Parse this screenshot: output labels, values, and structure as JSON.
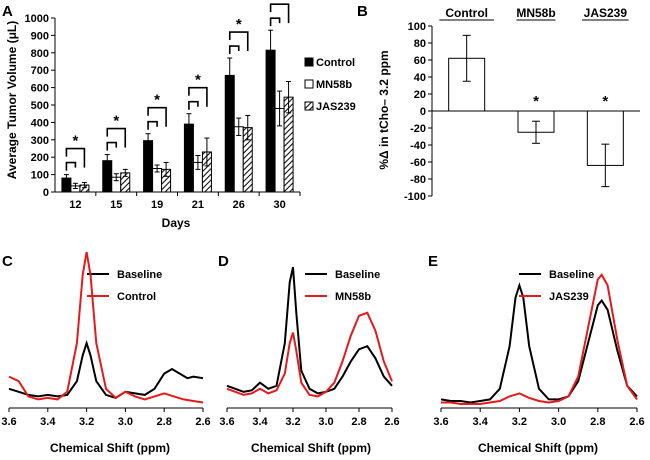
{
  "panels": {
    "A": "A",
    "B": "B",
    "C": "C",
    "D": "D",
    "E": "E"
  },
  "chart_data": [
    {
      "id": "A",
      "type": "bar",
      "title": "",
      "xlabel": "Days",
      "ylabel": "Average Tumor Volume (μL)",
      "ylim": [
        0,
        1000
      ],
      "yticks": [
        0,
        100,
        200,
        300,
        400,
        500,
        600,
        700,
        800,
        900,
        1000
      ],
      "categories": [
        "12",
        "15",
        "19",
        "21",
        "26",
        "30"
      ],
      "legend_position": "right",
      "series": [
        {
          "name": "Control",
          "values": [
            80,
            180,
            295,
            390,
            670,
            815
          ],
          "errors": [
            20,
            35,
            40,
            60,
            100,
            115
          ],
          "color": "#000000"
        },
        {
          "name": "MN58b",
          "values": [
            35,
            85,
            135,
            170,
            375,
            480
          ],
          "errors": [
            15,
            20,
            20,
            40,
            50,
            100
          ],
          "color": "#ffffff"
        },
        {
          "name": "JAS239",
          "values": [
            40,
            110,
            130,
            230,
            370,
            545
          ],
          "errors": [
            15,
            20,
            40,
            80,
            70,
            90
          ],
          "color": "hatched"
        }
      ],
      "significance": [
        {
          "label": "*"
        },
        {
          "label": "*"
        },
        {
          "label": "*"
        },
        {
          "label": "*"
        },
        {
          "label": "*"
        },
        {
          "label": "*"
        }
      ]
    },
    {
      "id": "B",
      "type": "bar",
      "title": "",
      "xlabel": "",
      "ylabel": "%Δ in tCho– 3.2 ppm",
      "ylim": [
        -100,
        100
      ],
      "yticks": [
        -100,
        -80,
        -60,
        -40,
        -20,
        0,
        20,
        40,
        60,
        80,
        100
      ],
      "categories": [
        "Control",
        "MN58b",
        "JAS239"
      ],
      "category_position": "top",
      "values": [
        62,
        -25,
        -64
      ],
      "errors": [
        27,
        13,
        25
      ],
      "significance": [
        "",
        "*",
        "*"
      ]
    },
    {
      "id": "C",
      "type": "line",
      "xlabel": "Chemical Shift (ppm)",
      "ylabel": "",
      "x_reversed": true,
      "xlim": [
        3.6,
        2.6
      ],
      "xticks": [
        "3.6",
        "3.4",
        "3.2",
        "3.0",
        "2.8",
        "2.6"
      ],
      "legend_position": "top-right",
      "series": [
        {
          "name": "Baseline",
          "color": "#000000",
          "x": [
            3.6,
            3.55,
            3.5,
            3.45,
            3.4,
            3.35,
            3.3,
            3.25,
            3.22,
            3.2,
            3.18,
            3.15,
            3.1,
            3.05,
            3.0,
            2.95,
            2.9,
            2.85,
            2.8,
            2.76,
            2.72,
            2.68,
            2.65,
            2.6
          ],
          "y": [
            0.1,
            0.08,
            0.06,
            0.05,
            0.06,
            0.05,
            0.06,
            0.15,
            0.32,
            0.4,
            0.32,
            0.15,
            0.06,
            0.04,
            0.08,
            0.07,
            0.06,
            0.1,
            0.2,
            0.23,
            0.2,
            0.17,
            0.18,
            0.17
          ]
        },
        {
          "name": "Control",
          "color": "#e41a1c",
          "x": [
            3.6,
            3.55,
            3.5,
            3.45,
            3.4,
            3.35,
            3.3,
            3.25,
            3.22,
            3.2,
            3.18,
            3.15,
            3.1,
            3.05,
            3.0,
            2.95,
            2.9,
            2.85,
            2.8,
            2.75,
            2.7,
            2.65,
            2.6
          ],
          "y": [
            0.18,
            0.15,
            0.05,
            0.03,
            0.04,
            0.03,
            0.08,
            0.4,
            0.85,
            1.0,
            0.85,
            0.4,
            0.1,
            0.04,
            0.08,
            0.05,
            0.03,
            0.05,
            0.07,
            0.05,
            0.03,
            0.02,
            0.01
          ]
        }
      ]
    },
    {
      "id": "D",
      "type": "line",
      "xlabel": "Chemical Shift (ppm)",
      "ylabel": "",
      "x_reversed": true,
      "xlim": [
        3.6,
        2.6
      ],
      "xticks": [
        "3.6",
        "3.4",
        "3.2",
        "3.0",
        "2.8",
        "2.6"
      ],
      "legend_position": "top-right",
      "series": [
        {
          "name": "Baseline",
          "color": "#000000",
          "x": [
            3.6,
            3.55,
            3.5,
            3.45,
            3.4,
            3.35,
            3.3,
            3.25,
            3.22,
            3.2,
            3.18,
            3.15,
            3.1,
            3.05,
            3.0,
            2.95,
            2.9,
            2.85,
            2.8,
            2.75,
            2.7,
            2.65,
            2.6
          ],
          "y": [
            0.12,
            0.1,
            0.08,
            0.09,
            0.14,
            0.1,
            0.12,
            0.4,
            0.8,
            0.9,
            0.6,
            0.22,
            0.1,
            0.07,
            0.08,
            0.1,
            0.18,
            0.28,
            0.36,
            0.38,
            0.3,
            0.18,
            0.12
          ]
        },
        {
          "name": "MN58b",
          "color": "#e41a1c",
          "x": [
            3.6,
            3.55,
            3.5,
            3.45,
            3.4,
            3.35,
            3.3,
            3.25,
            3.22,
            3.2,
            3.18,
            3.15,
            3.1,
            3.05,
            3.0,
            2.95,
            2.9,
            2.85,
            2.8,
            2.75,
            2.7,
            2.65,
            2.6
          ],
          "y": [
            0.1,
            0.08,
            0.06,
            0.07,
            0.1,
            0.07,
            0.09,
            0.2,
            0.4,
            0.47,
            0.35,
            0.14,
            0.06,
            0.05,
            0.08,
            0.14,
            0.28,
            0.45,
            0.58,
            0.6,
            0.48,
            0.28,
            0.15
          ]
        }
      ]
    },
    {
      "id": "E",
      "type": "line",
      "xlabel": "Chemical Shift (ppm)",
      "ylabel": "",
      "x_reversed": true,
      "xlim": [
        3.6,
        2.6
      ],
      "xticks": [
        "3.6",
        "3.4",
        "3.2",
        "3.0",
        "2.8",
        "2.6"
      ],
      "legend_position": "top-right",
      "series": [
        {
          "name": "Baseline",
          "color": "#000000",
          "x": [
            3.6,
            3.55,
            3.5,
            3.45,
            3.4,
            3.35,
            3.3,
            3.25,
            3.22,
            3.2,
            3.18,
            3.15,
            3.1,
            3.05,
            3.0,
            2.95,
            2.9,
            2.85,
            2.8,
            2.78,
            2.75,
            2.7,
            2.65,
            2.6
          ],
          "y": [
            0.03,
            0.02,
            0.02,
            0.01,
            0.02,
            0.03,
            0.1,
            0.38,
            0.7,
            0.78,
            0.7,
            0.38,
            0.1,
            0.03,
            0.03,
            0.05,
            0.15,
            0.4,
            0.65,
            0.68,
            0.62,
            0.35,
            0.12,
            0.05
          ]
        },
        {
          "name": "JAS239",
          "color": "#e41a1c",
          "x": [
            3.6,
            3.55,
            3.5,
            3.45,
            3.4,
            3.35,
            3.3,
            3.25,
            3.2,
            3.15,
            3.1,
            3.05,
            3.0,
            2.95,
            2.9,
            2.85,
            2.8,
            2.78,
            2.75,
            2.7,
            2.65,
            2.6
          ],
          "y": [
            0.01,
            0.01,
            0.0,
            0.0,
            0.0,
            0.01,
            0.02,
            0.05,
            0.07,
            0.04,
            0.02,
            0.01,
            0.02,
            0.05,
            0.18,
            0.5,
            0.82,
            0.85,
            0.78,
            0.42,
            0.12,
            0.03
          ]
        }
      ]
    }
  ]
}
